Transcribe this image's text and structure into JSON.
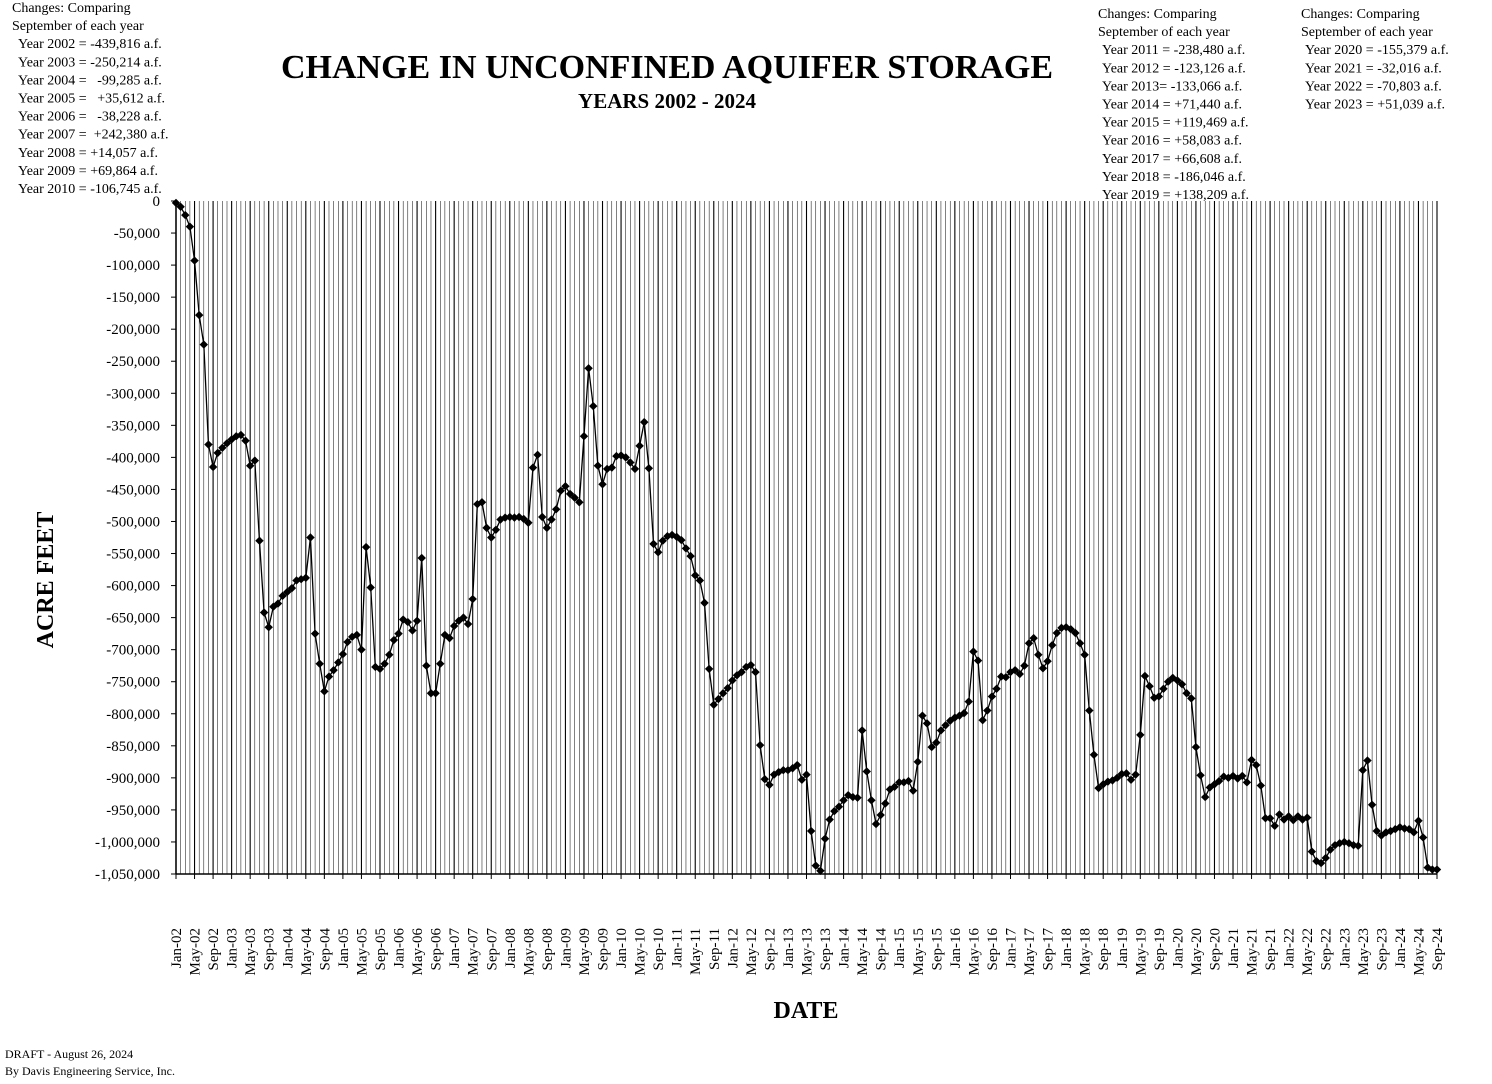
{
  "chart_data": {
    "type": "line",
    "title": "CHANGE IN UNCONFINED AQUIFER STORAGE",
    "subtitle": "YEARS 2002 - 2024",
    "y_label": "ACRE FEET",
    "x_label": "DATE",
    "annotations": [
      {
        "lines": [
          "Changes: Comparing",
          "September of each year",
          "Year 2002 = -439,816 a.f.",
          "Year 2003 = -250,214 a.f.",
          "Year 2004 =   -99,285 a.f.",
          "Year 2005 =   +35,612 a.f.",
          "Year 2006 =   -38,228 a.f.",
          "Year 2007 =  +242,380 a.f.",
          "Year 2008 = +14,057 a.f.",
          "Year 2009 = +69,864 a.f.",
          "Year 2010 = -106,745 a.f."
        ]
      },
      {
        "lines": [
          "Changes: Comparing",
          "September of each year",
          "Year 2011 = -238,480 a.f.",
          "Year 2012 = -123,126 a.f.",
          "Year 2013= -133,066 a.f.",
          "Year 2014 = +71,440 a.f.",
          "Year 2015 = +119,469 a.f.",
          "Year 2016 = +58,083 a.f.",
          "Year 2017 = +66,608 a.f.",
          "Year 2018 = -186,046 a.f.",
          "Year 2019 = +138,209 a.f."
        ]
      },
      {
        "lines": [
          "Changes: Comparing",
          "September of each year",
          "Year 2020 = -155,379 a.f.",
          "Year 2021 = -32,016 a.f.",
          "Year 2022 = -70,803 a.f.",
          "Year 2023 = +51,039 a.f."
        ]
      }
    ],
    "footer": [
      "DRAFT - August 26, 2024",
      "By Davis Engineering Service, Inc."
    ],
    "categories": [
      "Jan-02",
      null,
      null,
      null,
      "May-02",
      null,
      null,
      null,
      "Sep-02",
      null,
      null,
      null,
      "Jan-03",
      null,
      null,
      null,
      "May-03",
      null,
      null,
      null,
      "Sep-03",
      null,
      null,
      null,
      "Jan-04",
      null,
      null,
      null,
      "May-04",
      null,
      null,
      null,
      "Sep-04",
      null,
      null,
      null,
      "Jan-05",
      null,
      null,
      null,
      "May-05",
      null,
      null,
      null,
      "Sep-05",
      null,
      null,
      null,
      "Jan-06",
      null,
      null,
      null,
      "May-06",
      null,
      null,
      null,
      "Sep-06",
      null,
      null,
      null,
      "Jan-07",
      null,
      null,
      null,
      "May-07",
      null,
      null,
      null,
      "Sep-07",
      null,
      null,
      null,
      "Jan-08",
      null,
      null,
      null,
      "May-08",
      null,
      null,
      null,
      "Sep-08",
      null,
      null,
      null,
      "Jan-09",
      null,
      null,
      null,
      "May-09",
      null,
      null,
      null,
      "Sep-09",
      null,
      null,
      null,
      "Jan-10",
      null,
      null,
      null,
      "May-10",
      null,
      null,
      null,
      "Sep-10",
      null,
      null,
      null,
      "Jan-11",
      null,
      null,
      null,
      "May-11",
      null,
      null,
      null,
      "Sep-11",
      null,
      null,
      null,
      "Jan-12",
      null,
      null,
      null,
      "May-12",
      null,
      null,
      null,
      "Sep-12",
      null,
      null,
      null,
      "Jan-13",
      null,
      null,
      null,
      "May-13",
      null,
      null,
      null,
      "Sep-13",
      null,
      null,
      null,
      "Jan-14",
      null,
      null,
      null,
      "May-14",
      null,
      null,
      null,
      "Sep-14",
      null,
      null,
      null,
      "Jan-15",
      null,
      null,
      null,
      "May-15",
      null,
      null,
      null,
      "Sep-15",
      null,
      null,
      null,
      "Jan-16",
      null,
      null,
      null,
      "May-16",
      null,
      null,
      null,
      "Sep-16",
      null,
      null,
      null,
      "Jan-17",
      null,
      null,
      null,
      "May-17",
      null,
      null,
      null,
      "Sep-17",
      null,
      null,
      null,
      "Jan-18",
      null,
      null,
      null,
      "May-18",
      null,
      null,
      null,
      "Sep-18",
      null,
      null,
      null,
      "Jan-19",
      null,
      null,
      null,
      "May-19",
      null,
      null,
      null,
      "Sep-19",
      null,
      null,
      null,
      "Jan-20",
      null,
      null,
      null,
      "May-20",
      null,
      null,
      null,
      "Sep-20",
      null,
      null,
      null,
      "Jan-21",
      null,
      null,
      null,
      "May-21",
      null,
      null,
      null,
      "Sep-21",
      null,
      null,
      null,
      "Jan-22",
      null,
      null,
      null,
      "May-22",
      null,
      null,
      null,
      "Sep-22",
      null,
      null,
      null,
      "Jan-23",
      null,
      null,
      null,
      "May-23",
      null,
      null,
      null,
      "Sep-23",
      null,
      null,
      null,
      "Jan-24",
      null,
      null,
      null,
      "May-24",
      null,
      null,
      null,
      "Sep-24"
    ],
    "values": [
      -3000,
      -9000,
      -22000,
      -40000,
      -93000,
      -178000,
      -224000,
      -380000,
      -415000,
      -393000,
      -385000,
      -378000,
      -372000,
      -367000,
      -365000,
      -374000,
      -413000,
      -405000,
      -530000,
      -642000,
      -665000,
      -633000,
      -628000,
      -616000,
      -610000,
      -604000,
      -592000,
      -590000,
      -588000,
      -525000,
      -675000,
      -722000,
      -765000,
      -742000,
      -732000,
      -720000,
      -707000,
      -688000,
      -680000,
      -677000,
      -700000,
      -540000,
      -603000,
      -727000,
      -730000,
      -722000,
      -708000,
      -685000,
      -675000,
      -653000,
      -657000,
      -670000,
      -655000,
      -557000,
      -725000,
      -768000,
      -768000,
      -722000,
      -677000,
      -682000,
      -663000,
      -655000,
      -650000,
      -660000,
      -621000,
      -473000,
      -470000,
      -510000,
      -525000,
      -513000,
      -497000,
      -494000,
      -493000,
      -494000,
      -493000,
      -496000,
      -502000,
      -416000,
      -396000,
      -493000,
      -510000,
      -497000,
      -481000,
      -452000,
      -445000,
      -457000,
      -463000,
      -470000,
      -367000,
      -261000,
      -320000,
      -413000,
      -442000,
      -418000,
      -416000,
      -398000,
      -397000,
      -400000,
      -408000,
      -418000,
      -382000,
      -345000,
      -417000,
      -535000,
      -548000,
      -530000,
      -523000,
      -521000,
      -524000,
      -529000,
      -542000,
      -554000,
      -584000,
      -592000,
      -627000,
      -730000,
      -786000,
      -777000,
      -768000,
      -760000,
      -748000,
      -740000,
      -735000,
      -727000,
      -724000,
      -735000,
      -849000,
      -902000,
      -911000,
      -895000,
      -891000,
      -888000,
      -888000,
      -885000,
      -880000,
      -903000,
      -895000,
      -983000,
      -1037000,
      -1045000,
      -995000,
      -965000,
      -952000,
      -945000,
      -935000,
      -927000,
      -930000,
      -931000,
      -826000,
      -890000,
      -935000,
      -972000,
      -958000,
      -940000,
      -918000,
      -914000,
      -907000,
      -907000,
      -905000,
      -920000,
      -875000,
      -803000,
      -815000,
      -852000,
      -845000,
      -826000,
      -818000,
      -811000,
      -806000,
      -803000,
      -799000,
      -781000,
      -703000,
      -717000,
      -810000,
      -795000,
      -773000,
      -761000,
      -742000,
      -743000,
      -735000,
      -732000,
      -738000,
      -725000,
      -690000,
      -682000,
      -708000,
      -729000,
      -718000,
      -693000,
      -674000,
      -666000,
      -665000,
      -668000,
      -674000,
      -690000,
      -708000,
      -795000,
      -864000,
      -916000,
      -910000,
      -906000,
      -904000,
      -900000,
      -894000,
      -893000,
      -903000,
      -895000,
      -833000,
      -741000,
      -757000,
      -775000,
      -773000,
      -761000,
      -750000,
      -744000,
      -748000,
      -754000,
      -768000,
      -776000,
      -852000,
      -896000,
      -930000,
      -915000,
      -910000,
      -905000,
      -898000,
      -900000,
      -897000,
      -901000,
      -897000,
      -907000,
      -872000,
      -880000,
      -912000,
      -963000,
      -963000,
      -975000,
      -957000,
      -965000,
      -960000,
      -966000,
      -960000,
      -965000,
      -962000,
      -1015000,
      -1030000,
      -1033000,
      -1025000,
      -1012000,
      -1005000,
      -1002000,
      -1000000,
      -1002000,
      -1005000,
      -1006000,
      -888000,
      -873000,
      -942000,
      -983000,
      -990000,
      -985000,
      -983000,
      -980000,
      -977000,
      -979000,
      -980000,
      -985000,
      -967000,
      -993000,
      -1040000,
      -1043000,
      -1043000
    ],
    "color": "#000000",
    "marker": "diamond",
    "grid": "x",
    "ylim": [
      -1050000,
      0
    ],
    "yticks": [
      0,
      {
        "value": -50000,
        "label": "-50,000"
      },
      {
        "value": -100000,
        "label": "-100,000"
      },
      {
        "value": -150000,
        "label": "-150,000"
      },
      {
        "value": -200000,
        "label": "-200,000"
      },
      {
        "value": -250000,
        "label": "-250,000"
      },
      {
        "value": -300000,
        "label": "-300,000"
      },
      {
        "value": -350000,
        "label": "-350,000"
      },
      {
        "value": -400000,
        "label": "-400,000"
      },
      {
        "value": -450000,
        "label": "-450,000"
      },
      {
        "value": -500000,
        "label": "-500,000"
      },
      {
        "value": -550000,
        "label": "-550,000"
      },
      {
        "value": -600000,
        "label": "-600,000"
      },
      {
        "value": -650000,
        "label": "-650,000"
      },
      {
        "value": -700000,
        "label": "-700,000"
      },
      {
        "value": -750000,
        "label": "-750,000"
      },
      {
        "value": -800000,
        "label": "-800,000"
      },
      {
        "value": -850000,
        "label": "-850,000"
      },
      {
        "value": -900000,
        "label": "-900,000"
      },
      {
        "value": -950000,
        "label": "-950,000"
      },
      {
        "value": -1000000,
        "label": "-1,000,000"
      },
      {
        "value": -1050000,
        "label": "-1,050,000"
      }
    ]
  }
}
